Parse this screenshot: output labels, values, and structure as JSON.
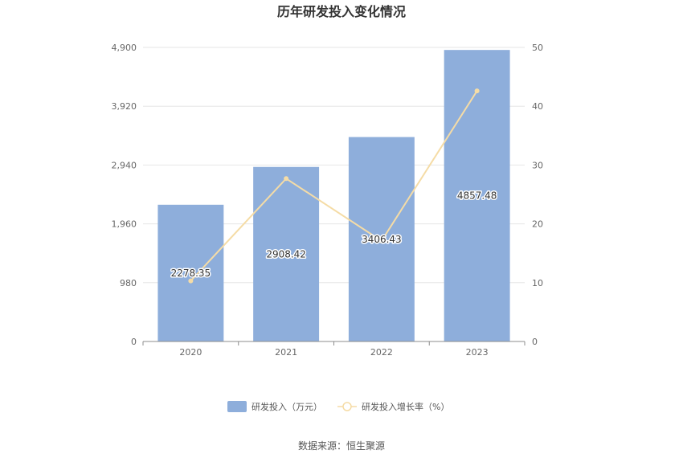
{
  "chart_data": {
    "type": "bar",
    "title": "历年研发投入变化情况",
    "categories": [
      "2020",
      "2021",
      "2022",
      "2023"
    ],
    "series": [
      {
        "name": "研发投入（万元）",
        "type": "bar",
        "axis": "left",
        "color": "#8eaedb",
        "values": [
          2278.35,
          2908.42,
          3406.43,
          4857.48
        ],
        "labels": [
          "2278.35",
          "2908.42",
          "3406.43",
          "4857.48"
        ]
      },
      {
        "name": "研发投入增长率（%）",
        "type": "line",
        "axis": "right",
        "color": "#f5dca6",
        "values": [
          10.3,
          27.7,
          17.1,
          42.6
        ]
      }
    ],
    "y_left": {
      "min": 0,
      "max": 4900,
      "ticks": [
        0,
        980,
        1960,
        2940,
        3920,
        4900
      ],
      "tick_labels": [
        "0",
        "980",
        "1,960",
        "2,940",
        "3,920",
        "4,900"
      ]
    },
    "y_right": {
      "min": 0,
      "max": 50,
      "ticks": [
        0,
        10,
        20,
        30,
        40,
        50
      ],
      "tick_labels": [
        "0",
        "10",
        "20",
        "30",
        "40",
        "50"
      ]
    },
    "grid": true,
    "legend_position": "bottom"
  },
  "source_text": "数据来源：恒生聚源"
}
